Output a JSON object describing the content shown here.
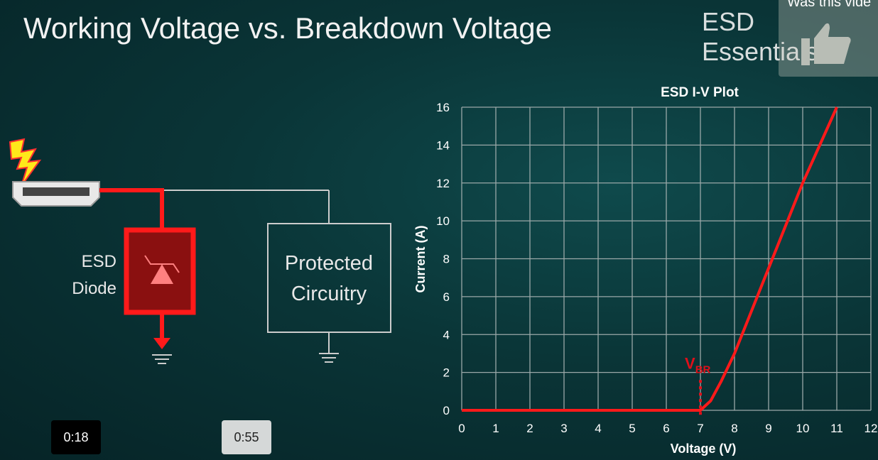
{
  "slide": {
    "title": "Working Voltage vs. Breakdown Voltage",
    "brand": "ESD Essentials",
    "diagram": {
      "diode_label_1": "ESD",
      "diode_label_2": "Diode",
      "circuit_label_1": "Protected",
      "circuit_label_2": "Circuitry"
    }
  },
  "player": {
    "feedback_prompt": "Was this vide",
    "current_time": "0:18",
    "hover_time": "0:55",
    "feedback_icon": "thumbs-up-icon"
  },
  "chart_data": {
    "type": "line",
    "title": "ESD I-V Plot",
    "xlabel": "Voltage (V)",
    "ylabel": "Current (A)",
    "xlim": [
      0,
      12
    ],
    "ylim": [
      0,
      16
    ],
    "grid": true,
    "xticks": [
      0,
      1,
      2,
      3,
      4,
      5,
      6,
      7,
      8,
      9,
      10,
      11,
      12
    ],
    "yticks": [
      0,
      2,
      4,
      6,
      8,
      10,
      12,
      14,
      16
    ],
    "series": [
      {
        "color": "#ff1a1a",
        "x": [
          0,
          7,
          7.3,
          7.6,
          8,
          9,
          10,
          11
        ],
        "y": [
          0,
          0,
          0.5,
          1.5,
          3,
          7.5,
          12,
          16
        ]
      }
    ],
    "annotation": {
      "text": "V",
      "subscript": "BR",
      "x": 7,
      "color": "#e0101a"
    }
  }
}
